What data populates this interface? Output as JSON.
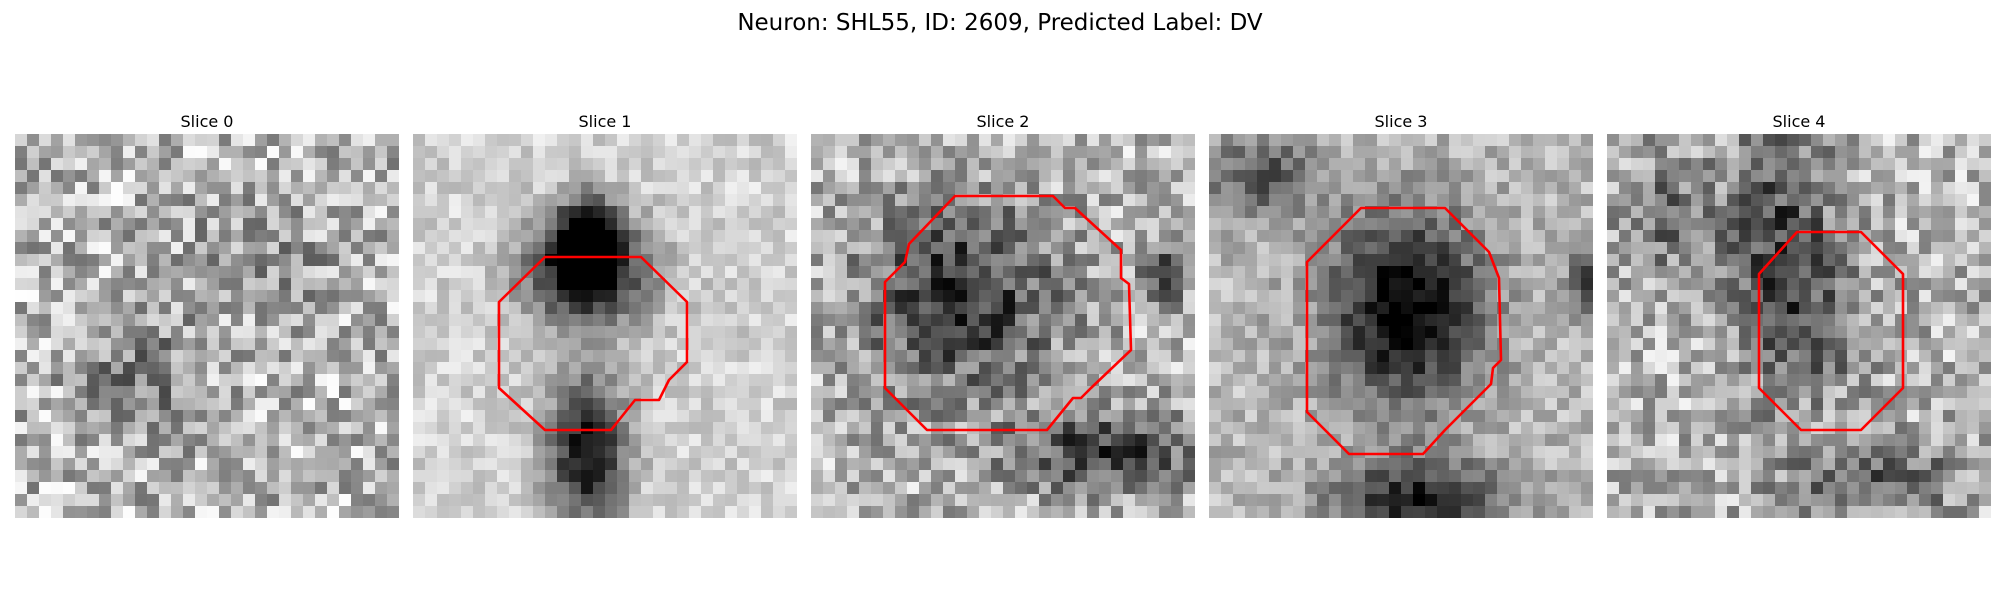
{
  "figure": {
    "title": "Neuron: SHL55, ID: 2609, Predicted Label: DV",
    "contour_color": "#ff0000",
    "colormap": "gray"
  },
  "slices": [
    {
      "title": "Slice 0",
      "has_contour": false
    },
    {
      "title": "Slice 1",
      "has_contour": true
    },
    {
      "title": "Slice 2",
      "has_contour": true
    },
    {
      "title": "Slice 3",
      "has_contour": true
    },
    {
      "title": "Slice 4",
      "has_contour": true
    }
  ]
}
